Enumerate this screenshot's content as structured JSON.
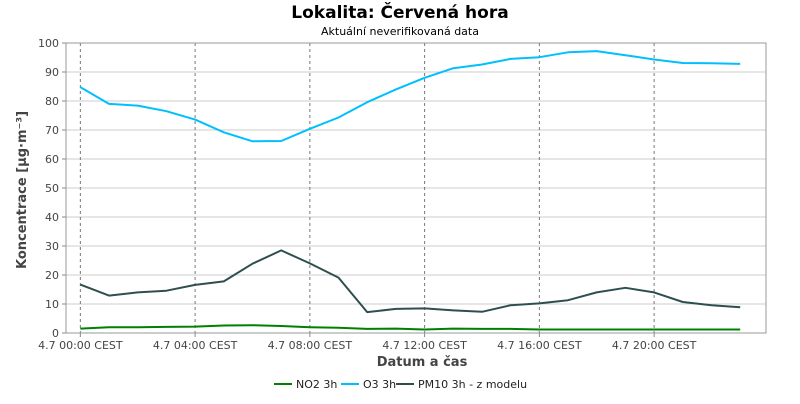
{
  "chart_data": {
    "type": "line",
    "title": "Lokalita: Červená hora",
    "subtitle": "Aktuální neverifikovaná data",
    "xlabel": "Datum a čas",
    "ylabel": "Koncentrace [µg·m⁻³]",
    "ylim": [
      0,
      100
    ],
    "yticks": [
      0,
      10,
      20,
      30,
      40,
      50,
      60,
      70,
      80,
      90,
      100
    ],
    "xlim": [
      -0.5,
      23.9
    ],
    "xticks": [
      {
        "h": 0,
        "label": "4.7 00:00 CEST"
      },
      {
        "h": 4,
        "label": "4.7 04:00 CEST"
      },
      {
        "h": 8,
        "label": "4.7 08:00 CEST"
      },
      {
        "h": 12,
        "label": "4.7 12:00 CEST"
      },
      {
        "h": 16,
        "label": "4.7 16:00 CEST"
      },
      {
        "h": 20,
        "label": "4.7 20:00 CEST"
      }
    ],
    "grid": true,
    "legend_position": "bottom",
    "x": [
      0,
      1,
      2,
      3,
      4,
      5,
      6,
      7,
      8,
      9,
      10,
      11,
      12,
      13,
      14,
      15,
      16,
      17,
      18,
      19,
      20,
      21,
      22,
      23
    ],
    "series": [
      {
        "name": "NO2 3h",
        "color": "#008000",
        "values": [
          1.5,
          2.0,
          2.0,
          2.1,
          2.2,
          2.6,
          2.7,
          2.4,
          2.0,
          1.8,
          1.4,
          1.5,
          1.2,
          1.5,
          1.4,
          1.4,
          1.2,
          1.2,
          1.2,
          1.2,
          1.2,
          1.2,
          1.2,
          1.2
        ]
      },
      {
        "name": "O3 3h",
        "color": "#00bfff",
        "values": [
          84.8,
          79.0,
          78.4,
          76.5,
          73.6,
          69.2,
          66.1,
          66.2,
          70.4,
          74.3,
          79.6,
          84.0,
          88.0,
          91.3,
          92.6,
          94.5,
          95.1,
          96.8,
          97.2,
          95.8,
          94.3,
          93.1,
          93.0,
          92.8
        ]
      },
      {
        "name": "PM10 3h - z modelu",
        "color": "#2f4f4f",
        "values": [
          16.7,
          12.9,
          14.0,
          14.6,
          16.6,
          17.8,
          23.9,
          28.5,
          24.0,
          19.1,
          7.2,
          8.3,
          8.5,
          7.8,
          7.3,
          9.6,
          10.2,
          11.3,
          14.0,
          15.6,
          14.0,
          10.7,
          9.6,
          8.9
        ]
      }
    ]
  }
}
